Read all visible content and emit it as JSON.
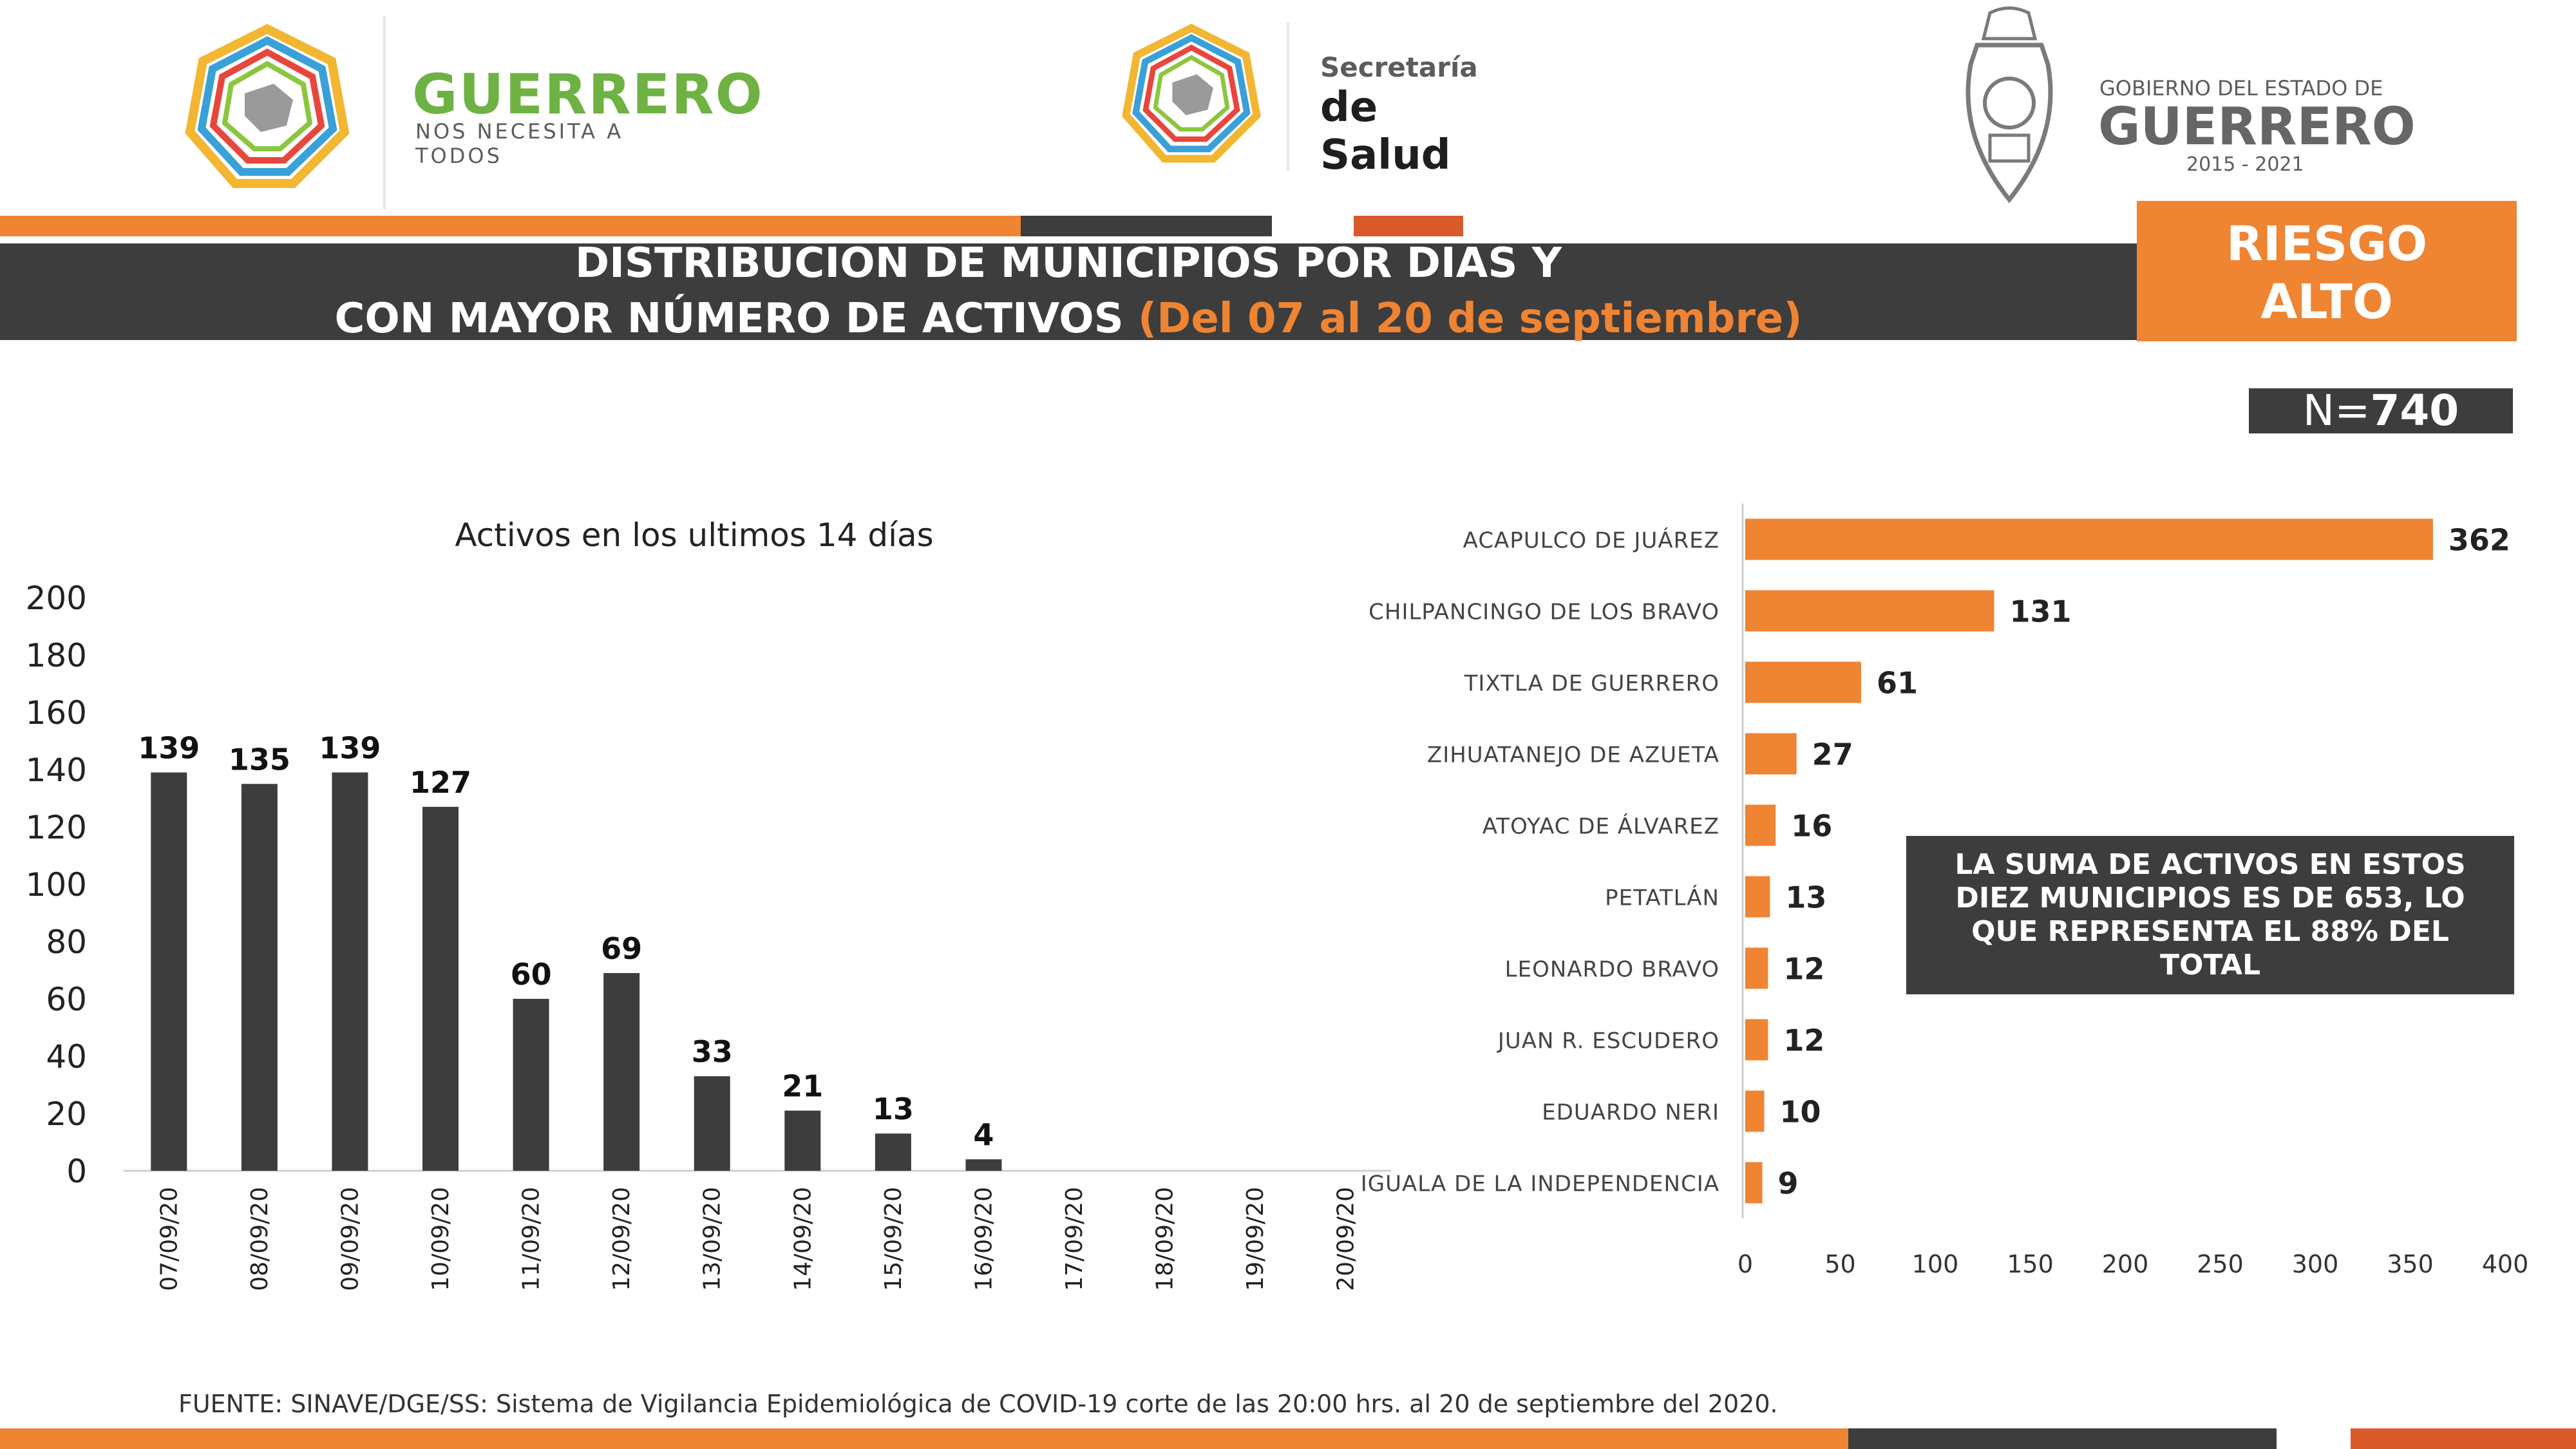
{
  "header": {
    "guerrero_logo": {
      "name": "GUERRERO",
      "tagline": "NOS NECESITA A TODOS"
    },
    "salud_logo": {
      "line1": "Secretaría",
      "line2": "de Salud"
    },
    "gobierno_logo": {
      "line1": "GOBIERNO DEL ESTADO DE",
      "line2": "GUERRERO",
      "line3": "2015 - 2021"
    }
  },
  "title": {
    "line1": "DISTRIBUCION DE MUNICIPIOS POR DIAS Y",
    "line2": "CON MAYOR NÚMERO DE ACTIVOS",
    "range": "(Del 07 al 20 de septiembre)"
  },
  "risk": {
    "line1": "RIESGO",
    "line2": "ALTO"
  },
  "total": {
    "prefix": "N=",
    "value": "740"
  },
  "callout": "LA SUMA DE ACTIVOS EN ESTOS DIEZ MUNICIPIOS ES DE 653, LO QUE REPRESENTA EL 88% DEL TOTAL",
  "source": "FUENTE: SINAVE/DGE/SS: Sistema de Vigilancia Epidemiológica de COVID-19 corte de las 20:00 hrs. al 20 de septiembre del 2020.",
  "colors": {
    "dark": "#3d3d3d",
    "orange": "#ef8433",
    "green": "#6fb244",
    "red_orange": "#d95a2b"
  },
  "chart_data": [
    {
      "type": "bar",
      "title": "Activos en los ultimos 14 días",
      "categories": [
        "07/09/20",
        "08/09/20",
        "09/09/20",
        "10/09/20",
        "11/09/20",
        "12/09/20",
        "13/09/20",
        "14/09/20",
        "15/09/20",
        "16/09/20",
        "17/09/20",
        "18/09/20",
        "19/09/20",
        "20/09/20"
      ],
      "values": [
        139,
        135,
        139,
        127,
        60,
        69,
        33,
        21,
        13,
        4,
        null,
        null,
        null,
        null
      ],
      "ylim": [
        0,
        200
      ],
      "yticks": [
        0,
        20,
        40,
        60,
        80,
        100,
        120,
        140,
        160,
        180,
        200
      ],
      "color": "#3d3d3d",
      "grid": false
    },
    {
      "type": "bar",
      "orientation": "horizontal",
      "categories": [
        "ACAPULCO DE JUÁREZ",
        "CHILPANCINGO DE LOS BRAVO",
        "TIXTLA DE GUERRERO",
        "ZIHUATANEJO DE AZUETA",
        "ATOYAC DE ÁLVAREZ",
        "PETATLÁN",
        "LEONARDO BRAVO",
        "JUAN R. ESCUDERO",
        "EDUARDO NERI",
        "IGUALA DE LA INDEPENDENCIA"
      ],
      "values": [
        362,
        131,
        61,
        27,
        16,
        13,
        12,
        12,
        10,
        9
      ],
      "xlim": [
        0,
        400
      ],
      "xticks": [
        0,
        50,
        100,
        150,
        200,
        250,
        300,
        350,
        400
      ],
      "color": "#ef8433",
      "grid": false
    }
  ]
}
